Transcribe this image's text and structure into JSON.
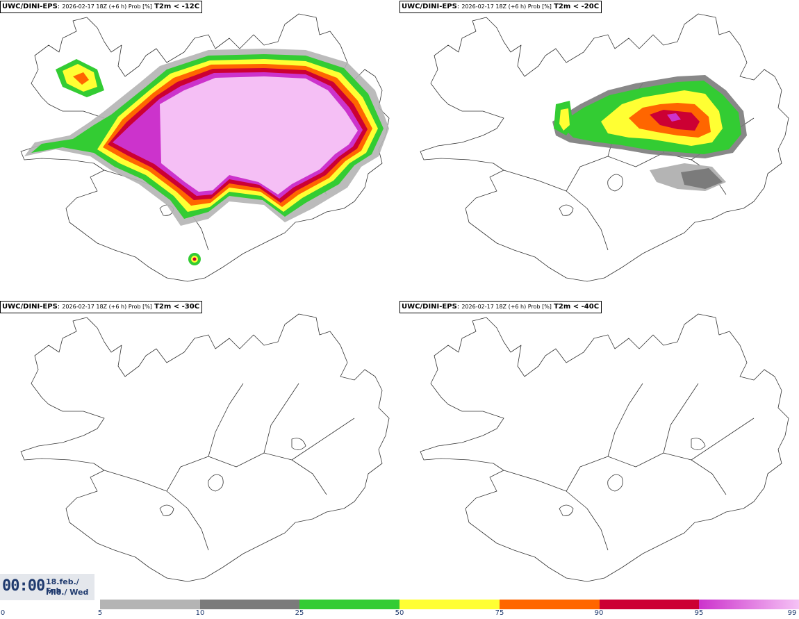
{
  "panels": [
    {
      "model": "UWC/DINI-EPS",
      "meta": "2026-02-17 18Z (+6 h) Prob [%]",
      "threshold": "T2m < -12C"
    },
    {
      "model": "UWC/DINI-EPS",
      "meta": "2026-02-17 18Z (+6 h) Prob [%]",
      "threshold": "T2m < -20C"
    },
    {
      "model": "UWC/DINI-EPS",
      "meta": "2026-02-17 18Z (+6 h) Prob [%]",
      "threshold": "T2m < -30C"
    },
    {
      "model": "UWC/DINI-EPS",
      "meta": "2026-02-17 18Z (+6 h) Prob [%]",
      "threshold": "T2m < -40C"
    }
  ],
  "valid_time": {
    "time": "00:00",
    "date": "18.feb./ Feb",
    "day": "Mið./ Wed"
  },
  "legend": {
    "ticks": [
      "0",
      "5",
      "10",
      "25",
      "50",
      "75",
      "90",
      "95",
      "99"
    ],
    "colors": [
      "#b4b4b4",
      "#7b7b7b",
      "#33cc33",
      "#ffff33",
      "#ff6600",
      "#cc0033",
      "#cc33cc"
    ],
    "last_gradient": [
      "#cc33cc",
      "#f5c2f5"
    ]
  }
}
